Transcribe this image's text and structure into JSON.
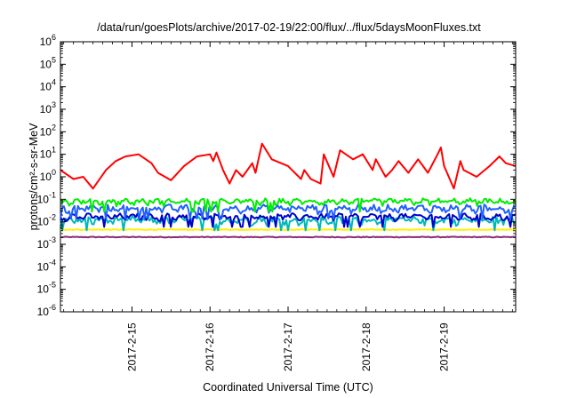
{
  "chart_data": {
    "type": "line",
    "title": "/data/run/goesPlots/archive/2017-02-19/22:00/flux/../flux/5daysMoonFluxes.txt",
    "xlabel": "Coordinated Universal Time (UTC)",
    "ylabel": "protons/cm²-s-sr-MeV",
    "yscale": "log",
    "ylim": [
      1e-06,
      1000000.0
    ],
    "xlim": [
      "2017-02-14 02:00",
      "2017-02-19 22:00"
    ],
    "x_ticks": [
      "2017-2-15",
      "2017-2-16",
      "2017-2-17",
      "2017-2-18",
      "2017-2-19"
    ],
    "y_tick_exponents": [
      -6,
      -5,
      -4,
      -3,
      -2,
      -1,
      0,
      1,
      2,
      3,
      4,
      5,
      6
    ],
    "grid": false,
    "legend": "none",
    "series": [
      {
        "color": "#ff0000",
        "x": [
          "2017-02-14 02:00",
          "2017-02-14 06:00",
          "2017-02-14 09:00",
          "2017-02-14 12:00",
          "2017-02-14 16:00",
          "2017-02-14 19:00",
          "2017-02-14 22:00",
          "2017-02-15 02:00",
          "2017-02-15 06:00",
          "2017-02-15 08:00",
          "2017-02-15 12:00",
          "2017-02-15 16:00",
          "2017-02-15 20:00",
          "2017-02-16 00:00",
          "2017-02-16 01:00",
          "2017-02-16 02:00",
          "2017-02-16 04:00",
          "2017-02-16 06:00",
          "2017-02-16 08:00",
          "2017-02-16 10:00",
          "2017-02-16 13:00",
          "2017-02-16 14:00",
          "2017-02-16 16:00",
          "2017-02-16 19:00",
          "2017-02-17 00:00",
          "2017-02-17 04:00",
          "2017-02-17 05:00",
          "2017-02-17 07:00",
          "2017-02-17 10:00",
          "2017-02-17 11:00",
          "2017-02-17 14:00",
          "2017-02-17 16:00",
          "2017-02-17 20:00",
          "2017-02-17 23:00",
          "2017-02-18 02:00",
          "2017-02-18 03:00",
          "2017-02-18 06:00",
          "2017-02-18 08:00",
          "2017-02-18 10:00",
          "2017-02-18 13:00",
          "2017-02-18 16:00",
          "2017-02-18 19:00",
          "2017-02-18 22:00",
          "2017-02-18 23:00",
          "2017-02-19 00:00",
          "2017-02-19 03:00",
          "2017-02-19 05:00",
          "2017-02-19 06:00",
          "2017-02-19 10:00",
          "2017-02-19 14:00",
          "2017-02-19 17:00",
          "2017-02-19 19:00",
          "2017-02-19 22:00"
        ],
        "y": [
          2,
          0.8,
          1,
          0.3,
          2,
          5,
          8,
          10,
          4,
          1.5,
          0.7,
          3,
          8,
          10,
          5,
          12,
          2,
          0.5,
          2,
          1,
          4,
          1.5,
          30,
          6,
          3,
          0.8,
          2,
          0.8,
          0.5,
          10,
          1,
          15,
          6,
          10,
          2,
          6,
          1,
          2,
          5,
          1.5,
          6,
          1.5,
          10,
          20,
          3,
          0.3,
          5,
          2,
          1,
          3,
          8,
          4,
          3
        ]
      },
      {
        "color": "#00ee00",
        "base": 0.08,
        "wiggle": 0.25
      },
      {
        "color": "#2060ff",
        "base": 0.04,
        "wiggle": 0.3
      },
      {
        "color": "#0000cc",
        "base": 0.017,
        "wiggle": 0.25
      },
      {
        "color": "#00b8b8",
        "base": 0.012,
        "wiggle": 0.3
      },
      {
        "color": "#ffee00",
        "base": 0.0045,
        "wiggle": 0.04
      },
      {
        "color": "#8b2a78",
        "base": 0.0021,
        "wiggle": 0.04
      }
    ]
  }
}
